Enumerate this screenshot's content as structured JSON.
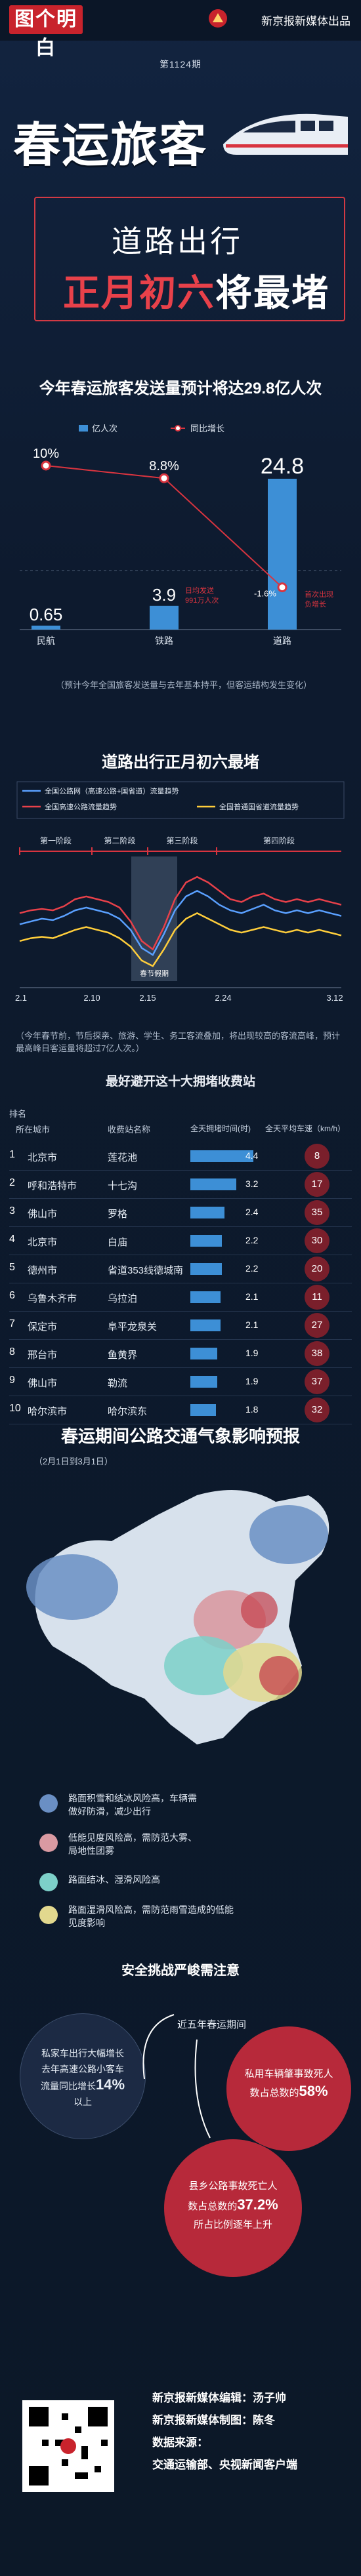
{
  "header": {
    "logo_text": "图个明白",
    "publisher": "新京报新媒体出品",
    "issue": "第1124期"
  },
  "hero": {
    "title": "春运旅客",
    "subtitle1": "道路出行",
    "subtitle2_red": "正月初六",
    "subtitle2_white": "将最堵"
  },
  "colors": {
    "accent_red": "#d8343f",
    "bar_blue": "#3d8fd6",
    "background": "#0d1a2e"
  },
  "section1": {
    "title": "今年春运旅客发送量预计将达29.8亿人次",
    "note": "（预计今年全国旅客发送量与去年基本持平，但客运结构发生变化）",
    "annotations": {
      "rail": "日均发送\n991万人次",
      "road": "首次出现\n负增长"
    }
  },
  "section2": {
    "title": "道路出行正月初六最堵",
    "legend": [
      "全国公路网（高速公路+国省道）流量趋势",
      "全国高速公路流量趋势",
      "全国普通国省道流量趋势"
    ],
    "phases": [
      "第一阶段",
      "第二阶段",
      "第三阶段",
      "第四阶段"
    ],
    "peak_label": "春节假期",
    "note": "（今年春节前，节后探亲、旅游、学生、务工客流叠加，将出现较高的客流高峰，预计最高峰日客运量将超过7亿人次。）"
  },
  "section3": {
    "title": "最好避开这十大拥堵收费站",
    "headers": [
      "排名",
      "所在城市",
      "收费站名称",
      "全天拥堵时间(时)",
      "全天平均车速（km/h）"
    ]
  },
  "section4": {
    "title": "春运期间公路交通气象影响预报",
    "subtitle": "（2月1日到3月1日）",
    "legend": [
      "路面积雪和结冰风险高，车辆需做好防滑，减少出行",
      "低能见度风险高，需防范大雾、局地性团雾",
      "路面结冰、湿滑风险高",
      "路面湿滑风险高，需防范雨雪造成的低能见度影响"
    ]
  },
  "section5": {
    "title": "安全挑战严峻需注意",
    "bubble_left": "私家车出行大幅增长，去年高速公路小客车流量同比增长14%以上",
    "bubble_top_label": "近五年春运期间",
    "bubble_right": "私用车辆肇事致死人数占总数的58%",
    "bubble_bottom": "县乡公路事故死亡人数占总数的37.2%，所占比例逐年上升",
    "left_prefix": "私家车出行大幅增长",
    "left_mid": "去年高速公路小客车",
    "left_end_a": "流量同比增长",
    "left_pct": "14%",
    "left_end_b": "以上",
    "right_a": "私用车辆肇事致死人",
    "right_b": "数占总数的",
    "right_pct": "58%",
    "bottom_a": "县乡公路事故死亡人",
    "bottom_b": "数占总数的",
    "bottom_pct": "37.2%",
    "bottom_c": "所占比例逐年上升"
  },
  "footer": {
    "editor": "新京报新媒体编辑：汤子帅",
    "designer": "新京报新媒体制图：陈冬",
    "source_label": "数据来源：",
    "source": "交通运输部、央视新闻客户端"
  },
  "chart_data": [
    {
      "type": "bar",
      "title": "今年春运旅客发送量预计将达29.8亿人次",
      "categories": [
        "民航",
        "铁路",
        "道路"
      ],
      "series": [
        {
          "name": "亿人次",
          "values": [
            0.65,
            3.9,
            24.8
          ]
        },
        {
          "name": "同比增长",
          "values": [
            10,
            8.8,
            -1.6
          ],
          "unit": "%"
        }
      ],
      "value_labels": [
        "0.65",
        "3.9",
        "24.8"
      ],
      "growth_labels": [
        "10%",
        "8.8%",
        "-1.6%"
      ]
    },
    {
      "type": "line",
      "title": "道路出行正月初六最堵",
      "x_ticks": [
        "2.1",
        "2.10",
        "2.15",
        "2.24",
        "3.12"
      ],
      "series": [
        {
          "name": "全国公路网（高速公路+国省道）流量趋势",
          "values": [
            0.62,
            0.64,
            0.66,
            0.65,
            0.68,
            0.72,
            0.74,
            0.72,
            0.7,
            0.66,
            0.58,
            0.45,
            0.4,
            0.55,
            0.72,
            0.82,
            0.86,
            0.82,
            0.76,
            0.72,
            0.7,
            0.73,
            0.76,
            0.72,
            0.7,
            0.72,
            0.7,
            0.72,
            0.7,
            0.68
          ]
        },
        {
          "name": "全国高速公路流量趋势",
          "values": [
            0.7,
            0.72,
            0.73,
            0.72,
            0.75,
            0.8,
            0.82,
            0.8,
            0.78,
            0.74,
            0.64,
            0.5,
            0.44,
            0.6,
            0.8,
            0.92,
            0.96,
            0.92,
            0.86,
            0.8,
            0.78,
            0.82,
            0.84,
            0.8,
            0.78,
            0.8,
            0.78,
            0.8,
            0.78,
            0.76
          ]
        },
        {
          "name": "全国普通国省道流量趋势",
          "values": [
            0.5,
            0.52,
            0.53,
            0.52,
            0.55,
            0.58,
            0.6,
            0.58,
            0.56,
            0.52,
            0.46,
            0.36,
            0.32,
            0.44,
            0.58,
            0.66,
            0.7,
            0.66,
            0.62,
            0.58,
            0.56,
            0.58,
            0.6,
            0.58,
            0.56,
            0.58,
            0.56,
            0.58,
            0.56,
            0.54
          ]
        }
      ]
    },
    {
      "type": "table",
      "title": "最好避开这十大拥堵收费站",
      "rows": [
        {
          "rank": "1",
          "city": "北京市",
          "station": "莲花池",
          "hours": 4.4,
          "speed": 8
        },
        {
          "rank": "2",
          "city": "呼和浩特市",
          "station": "十七沟",
          "hours": 3.2,
          "speed": 17
        },
        {
          "rank": "3",
          "city": "佛山市",
          "station": "罗格",
          "hours": 2.4,
          "speed": 35
        },
        {
          "rank": "4",
          "city": "北京市",
          "station": "白庙",
          "hours": 2.2,
          "speed": 30
        },
        {
          "rank": "5",
          "city": "德州市",
          "station": "省道353线德城南",
          "hours": 2.2,
          "speed": 20
        },
        {
          "rank": "6",
          "city": "乌鲁木齐市",
          "station": "乌拉泊",
          "hours": 2.1,
          "speed": 11
        },
        {
          "rank": "7",
          "city": "保定市",
          "station": "阜平龙泉关",
          "hours": 2.1,
          "speed": 27
        },
        {
          "rank": "8",
          "city": "邢台市",
          "station": "鱼黄界",
          "hours": 1.9,
          "speed": 38
        },
        {
          "rank": "9",
          "city": "佛山市",
          "station": "勒流",
          "hours": 1.9,
          "speed": 37
        },
        {
          "rank": "10",
          "city": "哈尔滨市",
          "station": "哈尔滨东",
          "hours": 1.8,
          "speed": 32
        }
      ]
    }
  ]
}
